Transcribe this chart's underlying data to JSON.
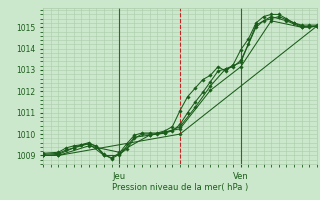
{
  "bg_color": "#cce8cc",
  "grid_color": "#aaccaa",
  "line_color": "#1a5c1a",
  "marker_color": "#1a5c1a",
  "vline_dark_color": "#336633",
  "red_vline_color": "#cc2222",
  "ylabel": "Pression niveau de la mer( hPa )",
  "xlabel_jeu": "Jeu",
  "xlabel_ven": "Ven",
  "ylim": [
    1008.6,
    1015.9
  ],
  "yticks": [
    1009,
    1010,
    1011,
    1012,
    1013,
    1014,
    1015
  ],
  "xlim": [
    -6,
    102
  ],
  "jeu_x": 24,
  "ven_x": 72,
  "red_vlines": [
    48
  ],
  "series": [
    [
      -6,
      1009.05,
      0,
      1009.1,
      3,
      1009.25,
      6,
      1009.35,
      9,
      1009.5,
      12,
      1009.55,
      15,
      1009.45,
      18,
      1009.05,
      21,
      1008.85,
      24,
      1009.05,
      27,
      1009.3,
      30,
      1009.8,
      33,
      1010.0,
      36,
      1010.0,
      39,
      1010.0,
      42,
      1010.05,
      45,
      1010.15,
      48,
      1010.45,
      51,
      1011.0,
      54,
      1011.5,
      57,
      1011.95,
      60,
      1012.45,
      63,
      1012.95,
      66,
      1013.05,
      69,
      1013.15,
      72,
      1013.45,
      75,
      1014.2,
      78,
      1015.0,
      81,
      1015.3,
      84,
      1015.4,
      87,
      1015.5,
      90,
      1015.35,
      93,
      1015.2,
      96,
      1015.05,
      99,
      1015.0,
      102,
      1015.05
    ],
    [
      -6,
      1009.1,
      0,
      1009.15,
      3,
      1009.35,
      6,
      1009.45,
      9,
      1009.5,
      12,
      1009.6,
      15,
      1009.4,
      18,
      1009.0,
      21,
      1008.9,
      24,
      1009.1,
      27,
      1009.55,
      30,
      1009.95,
      33,
      1010.05,
      36,
      1010.05,
      39,
      1010.05,
      42,
      1010.15,
      45,
      1010.35,
      48,
      1011.1,
      51,
      1011.75,
      54,
      1012.15,
      57,
      1012.55,
      60,
      1012.75,
      63,
      1013.15,
      66,
      1012.95,
      69,
      1013.25,
      72,
      1013.95,
      75,
      1014.45,
      78,
      1015.2,
      81,
      1015.5,
      84,
      1015.6,
      87,
      1015.6,
      90,
      1015.4,
      93,
      1015.2,
      96,
      1015.1,
      99,
      1015.1,
      102,
      1015.1
    ],
    [
      -6,
      1009.0,
      0,
      1009.05,
      6,
      1009.35,
      12,
      1009.55,
      18,
      1009.0,
      24,
      1009.0,
      30,
      1009.85,
      36,
      1009.95,
      42,
      1010.05,
      48,
      1010.35,
      54,
      1011.25,
      60,
      1012.25,
      66,
      1013.05,
      72,
      1013.35,
      78,
      1015.1,
      84,
      1015.5,
      90,
      1015.3,
      96,
      1015.0,
      102,
      1015.05
    ],
    [
      -6,
      1009.0,
      0,
      1009.0,
      12,
      1009.45,
      24,
      1009.15,
      36,
      1009.95,
      48,
      1010.25,
      60,
      1012.05,
      72,
      1013.15,
      84,
      1015.3,
      96,
      1015.0,
      102,
      1015.05
    ],
    [
      -6,
      1009.0,
      0,
      1009.0,
      48,
      1010.0,
      102,
      1015.05
    ]
  ]
}
